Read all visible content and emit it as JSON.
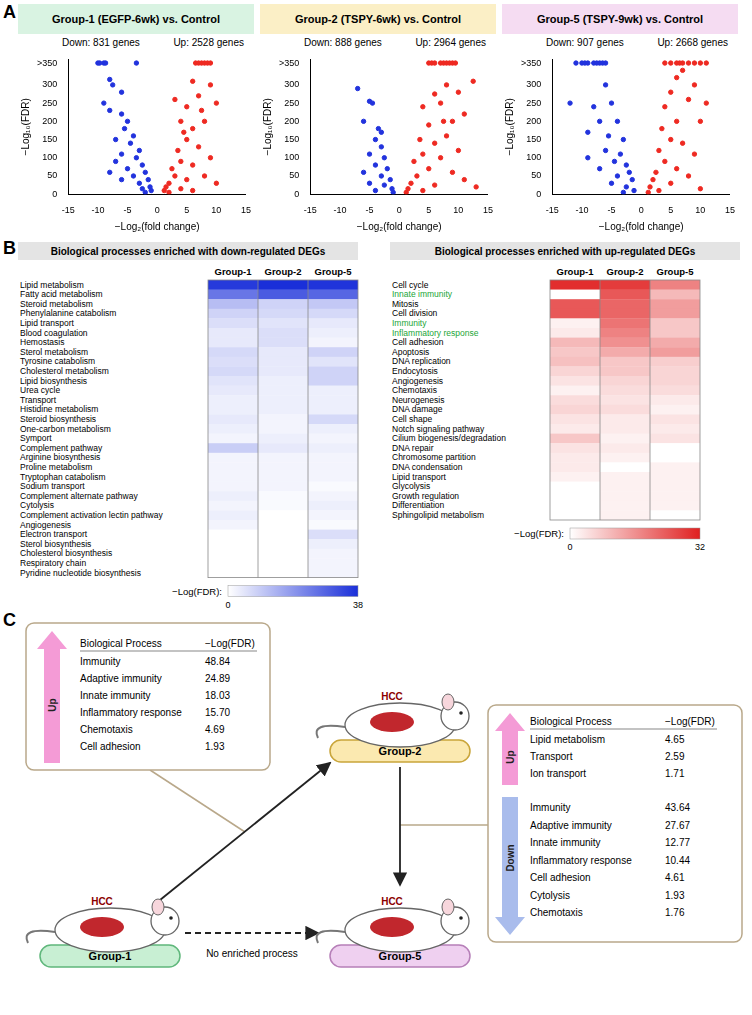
{
  "panel_labels": [
    "A",
    "B",
    "C"
  ],
  "chart_data": [
    {
      "type": "scatter",
      "title": "Group-1 (EGFP-6wk) vs. Control",
      "annotations": [
        "Down: 831 genes",
        "Up: 2528 genes"
      ],
      "x_label": "−Log₂(fold change)",
      "y_label": "−Log₁₀(FDR)",
      "xlim": [
        -15,
        15
      ],
      "xticks": [
        -15,
        -10,
        -5,
        0,
        5,
        10,
        15
      ],
      "ylim": [
        0,
        370
      ],
      "yticks": [
        0,
        50,
        100,
        150,
        200,
        250,
        300,
        {
          "value": 360,
          "label": ">350"
        }
      ],
      "grid": false,
      "marker": "circle",
      "series": [
        {
          "color": "#2233dd",
          "x": [
            -10,
            -9.7,
            -9,
            -8.7,
            -3.5,
            -8,
            -7.5,
            -6,
            -9,
            -8,
            -6,
            -5,
            -5.5,
            -4,
            -7,
            -4.5,
            -3,
            -6,
            -3.5,
            -2.5,
            -5,
            -2,
            -4,
            -1.5,
            -3,
            -1.2,
            -2.5,
            -1,
            -2,
            -6,
            -8,
            -7
          ],
          "values": [
            360,
            360,
            360,
            360,
            360,
            315,
            300,
            280,
            250,
            230,
            220,
            200,
            180,
            160,
            150,
            140,
            120,
            110,
            100,
            80,
            70,
            60,
            50,
            40,
            30,
            20,
            15,
            10,
            5,
            40,
            60,
            90
          ]
        },
        {
          "color": "#ee2a22",
          "x": [
            6.5,
            7,
            7.5,
            8,
            8.5,
            9,
            9,
            10,
            7,
            6,
            5,
            8,
            6,
            4,
            5,
            7,
            3.5,
            9,
            4,
            6,
            2.5,
            8,
            3,
            5,
            2,
            10,
            1.5,
            4,
            1.2,
            6,
            2,
            3,
            7.5,
            4.5
          ],
          "values": [
            360,
            360,
            360,
            360,
            360,
            360,
            300,
            250,
            270,
            310,
            240,
            200,
            180,
            200,
            150,
            130,
            120,
            100,
            90,
            80,
            70,
            50,
            50,
            40,
            30,
            30,
            20,
            15,
            10,
            10,
            5,
            260,
            230,
            170
          ]
        }
      ]
    },
    {
      "type": "scatter",
      "title": "Group-2 (TSPY-6wk) vs. Control",
      "annotations": [
        "Down: 888 genes",
        "Up: 2964 genes"
      ],
      "x_label": "−Log₂(fold change)",
      "y_label": "−Log₁₀(FDR)",
      "xlim": [
        -15,
        15
      ],
      "xticks": [
        -15,
        -10,
        -5,
        0,
        5,
        10,
        15
      ],
      "ylim": [
        0,
        370
      ],
      "yticks": [
        0,
        50,
        100,
        150,
        200,
        250,
        300,
        {
          "value": 360,
          "label": ">350"
        }
      ],
      "grid": false,
      "marker": "circle",
      "series": [
        {
          "color": "#2233dd",
          "x": [
            -7,
            -5,
            -4.5,
            -6,
            -3.5,
            -4,
            -3,
            -5,
            -2.5,
            -4,
            -2,
            -6,
            -3,
            -1.5,
            -5,
            -2.5,
            -1.2,
            -4,
            -1,
            -3
          ],
          "values": [
            290,
            255,
            250,
            200,
            180,
            150,
            130,
            110,
            100,
            80,
            70,
            60,
            50,
            40,
            30,
            25,
            15,
            10,
            5,
            170
          ]
        },
        {
          "color": "#ee2a22",
          "x": [
            5,
            5.5,
            6,
            7,
            7.5,
            8,
            8.5,
            9,
            9.5,
            12.5,
            8,
            10,
            6,
            11,
            7,
            4,
            9,
            5,
            8,
            3.5,
            6,
            10,
            4,
            7,
            2.5,
            5,
            9,
            3,
            11,
            2,
            6,
            1.5,
            4,
            1.2,
            13,
            7.5
          ],
          "values": [
            360,
            360,
            360,
            360,
            360,
            360,
            360,
            360,
            360,
            310,
            300,
            280,
            275,
            220,
            250,
            240,
            200,
            190,
            160,
            150,
            140,
            120,
            110,
            100,
            90,
            70,
            60,
            50,
            40,
            30,
            25,
            15,
            10,
            5,
            20,
            200
          ]
        }
      ]
    },
    {
      "type": "scatter",
      "title": "Group-5 (TSPY-9wk) vs. Control",
      "annotations": [
        "Down: 907 genes",
        "Up: 2668 genes"
      ],
      "x_label": "−Log₂(fold change)",
      "y_label": "−Log₁₀(FDR)",
      "xlim": [
        -15,
        15
      ],
      "xticks": [
        -15,
        -10,
        -5,
        0,
        5,
        10,
        15
      ],
      "ylim": [
        0,
        370
      ],
      "yticks": [
        0,
        50,
        100,
        150,
        200,
        250,
        300,
        {
          "value": 360,
          "label": ">350"
        }
      ],
      "grid": false,
      "marker": "circle",
      "series": [
        {
          "color": "#2233dd",
          "x": [
            -11,
            -10,
            -9.5,
            -9,
            -8,
            -7.5,
            -7,
            -6.5,
            -6,
            -12,
            -9,
            -8,
            -6,
            -5,
            -7,
            -4,
            -5.5,
            -3,
            -6,
            -3.5,
            -4.5,
            -2.5,
            -7,
            -2,
            -4,
            -1.5,
            -5,
            -2.5,
            -1.2,
            -3,
            -9
          ],
          "values": [
            360,
            360,
            360,
            360,
            360,
            360,
            360,
            360,
            360,
            250,
            170,
            240,
            300,
            250,
            200,
            200,
            160,
            150,
            120,
            110,
            90,
            80,
            70,
            60,
            50,
            40,
            30,
            20,
            10,
            5,
            100
          ]
        },
        {
          "color": "#ee2a22",
          "x": [
            4,
            5,
            6,
            6.5,
            7,
            8,
            9,
            10,
            11,
            7,
            9,
            6,
            5,
            11,
            8,
            4,
            6,
            10,
            3.5,
            5,
            7,
            3,
            9,
            4,
            6,
            2.5,
            8,
            2,
            5,
            1.5,
            10,
            1.2,
            3
          ],
          "values": [
            360,
            360,
            360,
            360,
            360,
            360,
            360,
            360,
            360,
            340,
            300,
            320,
            280,
            250,
            260,
            240,
            200,
            200,
            180,
            150,
            140,
            120,
            110,
            90,
            70,
            60,
            50,
            40,
            30,
            20,
            15,
            5,
            10
          ]
        }
      ]
    }
  ],
  "heatmaps": [
    {
      "title": "Biological processes enriched with down-regulated DEGs",
      "columns": [
        "Group-1",
        "Group-2",
        "Group-5"
      ],
      "color": "#1a2fd9",
      "rows": [
        {
          "label": "Lipid metabolism",
          "values": [
            36,
            38,
            37
          ]
        },
        {
          "label": "Fatty acid metabolism",
          "values": [
            25,
            30,
            28
          ]
        },
        {
          "label": "Steroid metabolism",
          "values": [
            12,
            8,
            10
          ]
        },
        {
          "label": "Phenylalanine catabolism",
          "values": [
            8,
            7,
            7
          ]
        },
        {
          "label": "Lipid transport",
          "values": [
            6,
            5,
            4
          ]
        },
        {
          "label": "Blood coagulation",
          "values": [
            4,
            6,
            3
          ]
        },
        {
          "label": "Hemostasis",
          "values": [
            4,
            6,
            2
          ]
        },
        {
          "label": "Sterol metabolism",
          "values": [
            7,
            4,
            8
          ]
        },
        {
          "label": "Tyrosine catabolism",
          "values": [
            6,
            4,
            5
          ]
        },
        {
          "label": "Cholesterol metabolism",
          "values": [
            7,
            4,
            8
          ]
        },
        {
          "label": "Lipid biosynthesis",
          "values": [
            5,
            3,
            8
          ]
        },
        {
          "label": "Urea cycle",
          "values": [
            4,
            3,
            3
          ]
        },
        {
          "label": "Transport",
          "values": [
            3,
            3,
            3
          ]
        },
        {
          "label": "Histidine metabolism",
          "values": [
            3,
            3,
            3
          ]
        },
        {
          "label": "Steroid biosynthesis",
          "values": [
            4,
            2,
            7
          ]
        },
        {
          "label": "One-carbon metabolism",
          "values": [
            3,
            2,
            3
          ]
        },
        {
          "label": "Symport",
          "values": [
            2,
            3,
            2
          ]
        },
        {
          "label": "Complement pathway",
          "values": [
            9,
            4,
            3
          ]
        },
        {
          "label": "Arginine biosynthesis",
          "values": [
            2,
            2,
            2
          ]
        },
        {
          "label": "Proline metabolism",
          "values": [
            2,
            2,
            2
          ]
        },
        {
          "label": "Tryptophan catabolism",
          "values": [
            2,
            2,
            2
          ]
        },
        {
          "label": "Sodium transport",
          "values": [
            2,
            2,
            1
          ]
        },
        {
          "label": "Complement alternate pathway",
          "values": [
            3,
            1,
            2
          ]
        },
        {
          "label": "Cytolysis",
          "values": [
            2,
            1,
            3
          ]
        },
        {
          "label": "Complement activation lectin pathway",
          "values": [
            3,
            null,
            2
          ]
        },
        {
          "label": "Angiogenesis",
          "values": [
            2,
            null,
            1
          ]
        },
        {
          "label": "Electron transport",
          "values": [
            null,
            null,
            6
          ]
        },
        {
          "label": "Sterol biosynthesis",
          "values": [
            null,
            null,
            3
          ]
        },
        {
          "label": "Cholesterol biosynthesis",
          "values": [
            null,
            null,
            2
          ]
        },
        {
          "label": "Respiratory chain",
          "values": [
            null,
            null,
            2
          ]
        },
        {
          "label": "Pyridine nucleotide biosynthesis",
          "values": [
            null,
            null,
            2
          ]
        }
      ],
      "colorbar": {
        "label": "−Log(FDR):",
        "range": [
          0,
          38
        ],
        "ticks": [
          0,
          38
        ]
      }
    },
    {
      "title": "Biological processes enriched with up-regulated DEGs",
      "columns": [
        "Group-1",
        "Group-2",
        "Group-5"
      ],
      "color": "#e02020",
      "rows": [
        {
          "label": "Cell cycle",
          "values": [
            30,
            28,
            18
          ]
        },
        {
          "label": "Innate immunity",
          "values": [
            null,
            24,
            10
          ],
          "color": "#22a637"
        },
        {
          "label": "Mitosis",
          "values": [
            24,
            22,
            14
          ]
        },
        {
          "label": "Cell division",
          "values": [
            24,
            22,
            14
          ]
        },
        {
          "label": "Immunity",
          "values": [
            2,
            20,
            8
          ],
          "color": "#22a637"
        },
        {
          "label": "Inflammatory response",
          "values": [
            3,
            18,
            8
          ],
          "color": "#22a637"
        },
        {
          "label": "Cell adhesion",
          "values": [
            10,
            16,
            12
          ]
        },
        {
          "label": "Apoptosis",
          "values": [
            8,
            12,
            14
          ]
        },
        {
          "label": "DNA replication",
          "values": [
            9,
            8,
            7
          ]
        },
        {
          "label": "Endocytosis",
          "values": [
            6,
            8,
            6
          ]
        },
        {
          "label": "Angiogenesis",
          "values": [
            4,
            6,
            6
          ]
        },
        {
          "label": "Chemotaxis",
          "values": [
            2,
            5,
            5
          ]
        },
        {
          "label": "Neurogenesis",
          "values": [
            5,
            4,
            3
          ]
        },
        {
          "label": "DNA damage",
          "values": [
            6,
            5,
            2
          ]
        },
        {
          "label": "Cell shape",
          "values": [
            4,
            3,
            4
          ]
        },
        {
          "label": "Notch signaling pathway",
          "values": [
            3,
            3,
            3
          ]
        },
        {
          "label": "Cilium biogenesis/degradation",
          "values": [
            8,
            2,
            4
          ]
        },
        {
          "label": "DNA repair",
          "values": [
            4,
            3,
            null
          ]
        },
        {
          "label": "Chromosome partition",
          "values": [
            3,
            2,
            null
          ]
        },
        {
          "label": "DNA condensation",
          "values": [
            3,
            null,
            2
          ]
        },
        {
          "label": "Lipid transport",
          "values": [
            2,
            2,
            2
          ]
        },
        {
          "label": "Glycolysis",
          "values": [
            null,
            2,
            2
          ]
        },
        {
          "label": "Growth regulation",
          "values": [
            null,
            2,
            2
          ]
        },
        {
          "label": "Differentiation",
          "values": [
            null,
            2,
            2
          ]
        },
        {
          "label": "Sphingolipid metabolism",
          "values": [
            null,
            2,
            null
          ]
        }
      ],
      "colorbar": {
        "label": "−Log(FDR):",
        "range": [
          0,
          32
        ],
        "ticks": [
          0,
          32
        ]
      }
    }
  ],
  "diagram": {
    "groups": [
      "Group-1",
      "Group-2",
      "Group-5"
    ],
    "tumor_label": "HCC",
    "dashed_arrow_label": "No enriched process",
    "group1_to_group2": {
      "sections": [
        {
          "direction": "Up",
          "header": [
            "Biological Process",
            "−Log(FDR)"
          ],
          "rows": [
            [
              "Immunity",
              "48.84"
            ],
            [
              "Adaptive immunity",
              "24.89"
            ],
            [
              "Innate immunity",
              "18.03"
            ],
            [
              "Inflammatory response",
              "15.70"
            ],
            [
              "Chemotaxis",
              "4.69"
            ],
            [
              "Cell adhesion",
              "1.93"
            ]
          ]
        }
      ]
    },
    "group2_to_group5": {
      "sections": [
        {
          "direction": "Up",
          "header": [
            "Biological Process",
            "−Log(FDR)"
          ],
          "rows": [
            [
              "Lipid metabolism",
              "4.65"
            ],
            [
              "Transport",
              "2.59"
            ],
            [
              "Ion transport",
              "1.71"
            ]
          ]
        },
        {
          "direction": "Down",
          "rows": [
            [
              "Immunity",
              "43.64"
            ],
            [
              "Adaptive immunity",
              "27.67"
            ],
            [
              "Innate immunity",
              "12.77"
            ],
            [
              "Inflammatory response",
              "10.44"
            ],
            [
              "Cell adhesion",
              "4.61"
            ],
            [
              "Cytolysis",
              "1.93"
            ],
            [
              "Chemotaxis",
              "1.76"
            ]
          ]
        }
      ]
    }
  }
}
